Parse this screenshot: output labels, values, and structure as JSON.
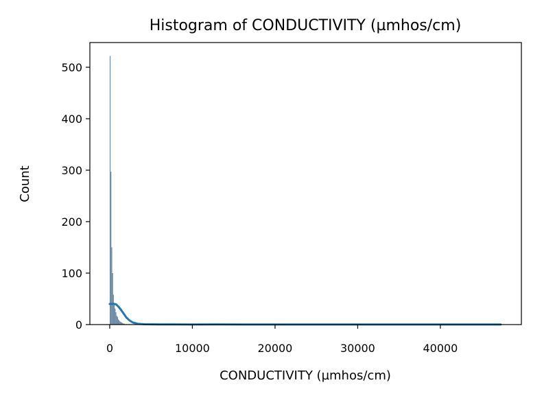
{
  "chart_data": {
    "type": "bar",
    "title": "Histogram of CONDUCTIVITY (µmhos/cm)",
    "xlabel": "CONDUCTIVITY (µmhos/cm)",
    "ylabel": "Count",
    "xlim": [
      -2400,
      49800
    ],
    "ylim": [
      0,
      548
    ],
    "x_ticks": [
      0,
      10000,
      20000,
      30000,
      40000
    ],
    "x_tick_labels": [
      "0",
      "10000",
      "20000",
      "30000",
      "40000"
    ],
    "y_ticks": [
      0,
      100,
      200,
      300,
      400,
      500
    ],
    "y_tick_labels": [
      "0",
      "100",
      "200",
      "300",
      "400",
      "500"
    ],
    "grid": false,
    "histogram": {
      "bar_color": "#4f7392",
      "bins": [
        {
          "x0": 0,
          "x1": 100,
          "count": 522
        },
        {
          "x0": 100,
          "x1": 200,
          "count": 297
        },
        {
          "x0": 200,
          "x1": 300,
          "count": 150
        },
        {
          "x0": 300,
          "x1": 400,
          "count": 100
        },
        {
          "x0": 400,
          "x1": 500,
          "count": 58
        },
        {
          "x0": 500,
          "x1": 600,
          "count": 42
        },
        {
          "x0": 600,
          "x1": 700,
          "count": 31
        },
        {
          "x0": 700,
          "x1": 800,
          "count": 24
        },
        {
          "x0": 800,
          "x1": 900,
          "count": 17
        },
        {
          "x0": 900,
          "x1": 1000,
          "count": 15
        },
        {
          "x0": 1000,
          "x1": 1100,
          "count": 10
        },
        {
          "x0": 1100,
          "x1": 1200,
          "count": 8
        },
        {
          "x0": 1200,
          "x1": 1300,
          "count": 6
        },
        {
          "x0": 1300,
          "x1": 1400,
          "count": 5
        },
        {
          "x0": 1400,
          "x1": 1500,
          "count": 4
        },
        {
          "x0": 1500,
          "x1": 1600,
          "count": 3
        },
        {
          "x0": 1600,
          "x1": 1700,
          "count": 2
        },
        {
          "x0": 1700,
          "x1": 1800,
          "count": 2
        },
        {
          "x0": 1800,
          "x1": 1900,
          "count": 1
        },
        {
          "x0": 2000,
          "x1": 2100,
          "count": 1
        },
        {
          "x0": 2300,
          "x1": 2400,
          "count": 1
        },
        {
          "x0": 12900,
          "x1": 13000,
          "count": 1
        }
      ]
    },
    "density_curve": {
      "color": "#1f77b4",
      "points": [
        {
          "x": 0,
          "y": 40
        },
        {
          "x": 200,
          "y": 40
        },
        {
          "x": 500,
          "y": 40.5
        },
        {
          "x": 800,
          "y": 39
        },
        {
          "x": 1100,
          "y": 34
        },
        {
          "x": 1400,
          "y": 28
        },
        {
          "x": 1700,
          "y": 21
        },
        {
          "x": 2000,
          "y": 14
        },
        {
          "x": 2400,
          "y": 8
        },
        {
          "x": 2800,
          "y": 4
        },
        {
          "x": 3400,
          "y": 1.5
        },
        {
          "x": 4200,
          "y": 0.6
        },
        {
          "x": 6000,
          "y": 0.3
        },
        {
          "x": 10000,
          "y": 0.2
        },
        {
          "x": 13000,
          "y": 0.3
        },
        {
          "x": 16000,
          "y": 0.2
        },
        {
          "x": 25000,
          "y": 0.1
        },
        {
          "x": 35000,
          "y": 0.1
        },
        {
          "x": 47300,
          "y": 0.1
        }
      ]
    }
  }
}
